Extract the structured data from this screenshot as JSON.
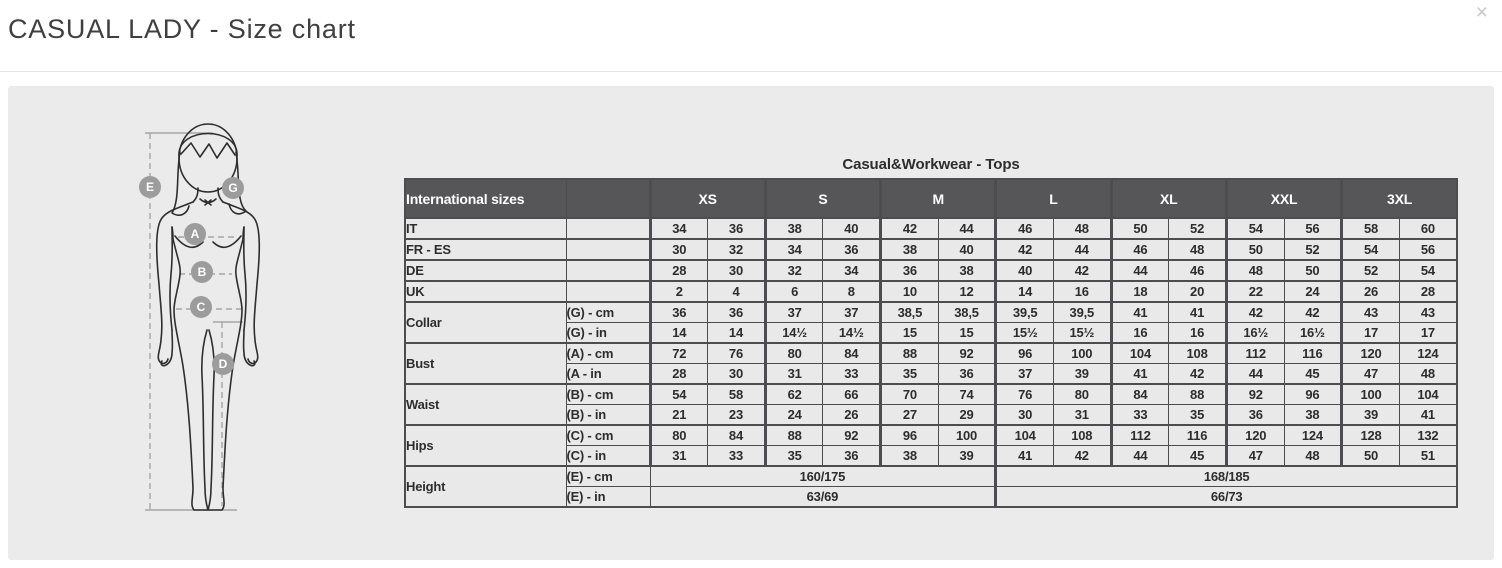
{
  "page": {
    "title": "CASUAL LADY - Size chart",
    "close_icon": "×"
  },
  "figure": {
    "markers": [
      {
        "label": "E"
      },
      {
        "label": "G"
      },
      {
        "label": "A"
      },
      {
        "label": "B"
      },
      {
        "label": "C"
      },
      {
        "label": "D"
      }
    ]
  },
  "size_chart": {
    "title": "Casual&Workwear - Tops",
    "corner_header": "International sizes",
    "size_groups": [
      "XS",
      "S",
      "M",
      "L",
      "XL",
      "XXL",
      "3XL"
    ],
    "conversion_rows": [
      {
        "label": "IT",
        "values": [
          "34",
          "36",
          "38",
          "40",
          "42",
          "44",
          "46",
          "48",
          "50",
          "52",
          "54",
          "56",
          "58",
          "60"
        ]
      },
      {
        "label": "FR - ES",
        "values": [
          "30",
          "32",
          "34",
          "36",
          "38",
          "40",
          "42",
          "44",
          "46",
          "48",
          "50",
          "52",
          "54",
          "56"
        ]
      },
      {
        "label": "DE",
        "values": [
          "28",
          "30",
          "32",
          "34",
          "36",
          "38",
          "40",
          "42",
          "44",
          "46",
          "48",
          "50",
          "52",
          "54"
        ]
      },
      {
        "label": "UK",
        "values": [
          "2",
          "4",
          "6",
          "8",
          "10",
          "12",
          "14",
          "16",
          "18",
          "20",
          "22",
          "24",
          "26",
          "28"
        ]
      }
    ],
    "measurement_rows": [
      {
        "label": "Collar",
        "sub_rows": [
          {
            "label": "(G) - cm",
            "values": [
              "36",
              "36",
              "37",
              "37",
              "38,5",
              "38,5",
              "39,5",
              "39,5",
              "41",
              "41",
              "42",
              "42",
              "43",
              "43"
            ]
          },
          {
            "label": "(G) - in",
            "values": [
              "14",
              "14",
              "14½",
              "14½",
              "15",
              "15",
              "15½",
              "15½",
              "16",
              "16",
              "16½",
              "16½",
              "17",
              "17"
            ]
          }
        ]
      },
      {
        "label": "Bust",
        "sub_rows": [
          {
            "label": "(A) - cm",
            "values": [
              "72",
              "76",
              "80",
              "84",
              "88",
              "92",
              "96",
              "100",
              "104",
              "108",
              "112",
              "116",
              "120",
              "124"
            ]
          },
          {
            "label": "(A - in",
            "values": [
              "28",
              "30",
              "31",
              "33",
              "35",
              "36",
              "37",
              "39",
              "41",
              "42",
              "44",
              "45",
              "47",
              "48"
            ]
          }
        ]
      },
      {
        "label": "Waist",
        "sub_rows": [
          {
            "label": "(B) - cm",
            "values": [
              "54",
              "58",
              "62",
              "66",
              "70",
              "74",
              "76",
              "80",
              "84",
              "88",
              "92",
              "96",
              "100",
              "104"
            ]
          },
          {
            "label": "(B) - in",
            "values": [
              "21",
              "23",
              "24",
              "26",
              "27",
              "29",
              "30",
              "31",
              "33",
              "35",
              "36",
              "38",
              "39",
              "41"
            ]
          }
        ]
      },
      {
        "label": "Hips",
        "sub_rows": [
          {
            "label": "(C) - cm",
            "values": [
              "80",
              "84",
              "88",
              "92",
              "96",
              "100",
              "104",
              "108",
              "112",
              "116",
              "120",
              "124",
              "128",
              "132"
            ]
          },
          {
            "label": "(C) - in",
            "values": [
              "31",
              "33",
              "35",
              "36",
              "38",
              "39",
              "41",
              "42",
              "44",
              "45",
              "47",
              "48",
              "50",
              "51"
            ]
          }
        ]
      }
    ],
    "height_row": {
      "label": "Height",
      "sub_rows": [
        {
          "label": "(E) - cm",
          "left": "160/175",
          "right": "168/185"
        },
        {
          "label": "(E) - in",
          "left": "63/69",
          "right": "66/73"
        }
      ]
    }
  }
}
